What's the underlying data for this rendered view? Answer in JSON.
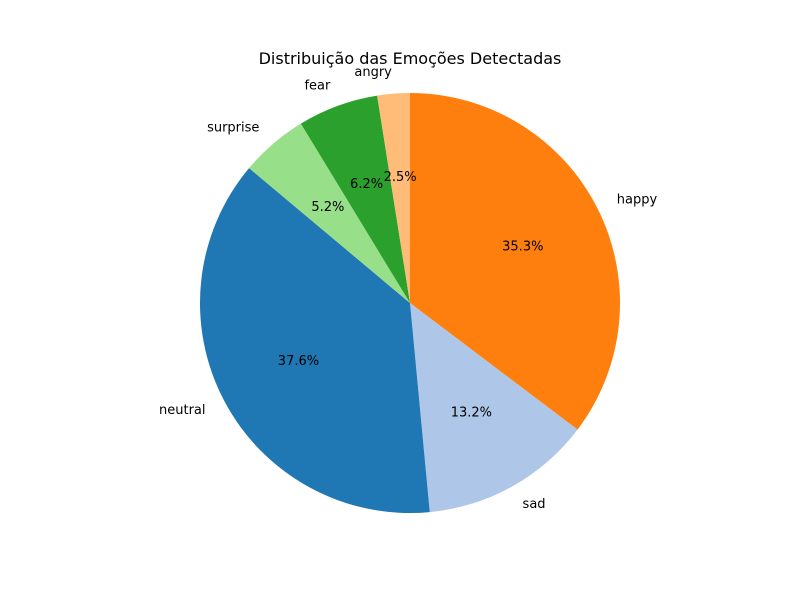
{
  "chart_data": {
    "type": "pie",
    "title": "Distribuição das Emoções Detectadas",
    "start_angle_deg": 90,
    "direction": "clockwise",
    "slices": [
      {
        "label": "happy",
        "percent_label": "35.3%",
        "value": 35.3,
        "color": "#ff7f0e"
      },
      {
        "label": "sad",
        "percent_label": "13.2%",
        "value": 13.2,
        "color": "#aec7e8"
      },
      {
        "label": "neutral",
        "percent_label": "37.6%",
        "value": 37.6,
        "color": "#1f77b4"
      },
      {
        "label": "surprise",
        "percent_label": "5.2%",
        "value": 5.2,
        "color": "#98df8a"
      },
      {
        "label": "fear",
        "percent_label": "6.2%",
        "value": 6.2,
        "color": "#2ca02c"
      },
      {
        "label": "angry",
        "percent_label": "2.5%",
        "value": 2.5,
        "color": "#ffbb78"
      }
    ]
  }
}
